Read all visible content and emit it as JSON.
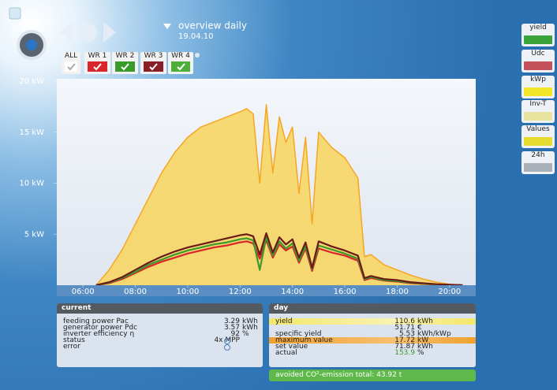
{
  "header": {
    "title": "overview daily",
    "date": "19.04.10"
  },
  "inverter_buttons": [
    "ALL",
    "WR 1",
    "WR 2",
    "WR 3",
    "WR 4"
  ],
  "side_buttons": [
    "yield",
    "Udc",
    "kWp",
    "Inv-T",
    "Values",
    "24h"
  ],
  "chart_data": {
    "type": "line",
    "x": [
      6.5,
      7,
      7.5,
      8,
      8.5,
      9,
      9.5,
      10,
      10.5,
      11,
      11.5,
      12,
      12.25,
      12.5,
      12.75,
      13,
      13.25,
      13.5,
      13.75,
      14,
      14.25,
      14.5,
      14.75,
      15,
      15.5,
      16,
      16.5,
      16.75,
      17,
      17.5,
      18,
      18.5,
      19,
      19.5,
      20,
      20.5
    ],
    "series": [
      {
        "color": "#f5a623",
        "fill": "#f7d664",
        "values": [
          0,
          1.5,
          3.5,
          6,
          8.5,
          11,
          13,
          14.5,
          15.5,
          16,
          16.5,
          17,
          17.3,
          16.8,
          10,
          17.7,
          11,
          16.5,
          14,
          15.5,
          9,
          14.5,
          6,
          15,
          13.5,
          12.5,
          10.5,
          2.8,
          3,
          2,
          1.5,
          1,
          0.6,
          0.3,
          0.1,
          0
        ]
      },
      {
        "color": "#d8262a",
        "values": [
          0,
          0.2,
          0.6,
          1.2,
          1.8,
          2.3,
          2.7,
          3.1,
          3.4,
          3.7,
          3.9,
          4.2,
          4.3,
          4.1,
          2.6,
          4.4,
          2.7,
          4,
          3.4,
          3.8,
          2.2,
          3.6,
          1.4,
          3.6,
          3.2,
          2.9,
          2.4,
          0.5,
          0.7,
          0.45,
          0.35,
          0.2,
          0.12,
          0.06,
          0.02,
          0
        ]
      },
      {
        "color": "#3a9a2a",
        "values": [
          0,
          0.25,
          0.7,
          1.3,
          2,
          2.5,
          3,
          3.4,
          3.7,
          4,
          4.2,
          4.5,
          4.6,
          4.4,
          1.5,
          4.7,
          2.9,
          4.3,
          3.6,
          4.1,
          2.4,
          3.8,
          1.6,
          3.9,
          3.5,
          3.1,
          2.6,
          0.6,
          0.8,
          0.5,
          0.4,
          0.25,
          0.15,
          0.08,
          0.03,
          0
        ]
      },
      {
        "color": "#6b1a1a",
        "values": [
          0,
          0.3,
          0.8,
          1.5,
          2.2,
          2.8,
          3.3,
          3.7,
          4,
          4.3,
          4.6,
          4.9,
          5,
          4.8,
          3,
          5.1,
          3.2,
          4.7,
          4,
          4.5,
          2.7,
          4.2,
          1.7,
          4.3,
          3.8,
          3.4,
          2.9,
          0.7,
          0.9,
          0.6,
          0.5,
          0.3,
          0.2,
          0.1,
          0.05,
          0
        ]
      }
    ],
    "xlim": [
      5,
      21
    ],
    "xticks": [
      {
        "value": 6,
        "label": "06:00"
      },
      {
        "value": 8,
        "label": "08:00"
      },
      {
        "value": 10,
        "label": "10:00"
      },
      {
        "value": 12,
        "label": "12:00"
      },
      {
        "value": 14,
        "label": "14:00"
      },
      {
        "value": 16,
        "label": "16:00"
      },
      {
        "value": 18,
        "label": "18:00"
      },
      {
        "value": 20,
        "label": "20:00"
      }
    ],
    "ylim": [
      0,
      20
    ],
    "yticks": [
      {
        "value": 5,
        "label": "5 kW"
      },
      {
        "value": 10,
        "label": "10 kW"
      },
      {
        "value": 15,
        "label": "15 kW"
      },
      {
        "value": 20,
        "label": "20 kW"
      }
    ],
    "grid": false
  },
  "current": {
    "title": "current",
    "rows": [
      {
        "label": "feeding power Pac",
        "value": "3.29",
        "unit": "kWh"
      },
      {
        "label": "generator power Pdc",
        "value": "3.57",
        "unit": "kWh"
      },
      {
        "label": "inverter efficiency η",
        "value": "92",
        "unit": "%"
      },
      {
        "label": "status",
        "value": "4x MPP"
      },
      {
        "label": "error"
      }
    ]
  },
  "day": {
    "title": "day",
    "rows": [
      {
        "label": "yield",
        "value": "110.6",
        "unit": "kWh"
      },
      {
        "value": "51.71",
        "unit": "€"
      },
      {
        "label": "specific yield",
        "value": "5.53",
        "unit": "kWh/kWp"
      },
      {
        "label": "maximum value",
        "value": "17.72",
        "unit": "kW"
      },
      {
        "label": "set value",
        "value": "71.87",
        "unit": "kWh"
      },
      {
        "label": "actual",
        "value": "153.9",
        "unit": "%"
      }
    ]
  },
  "co2": "avoided CO²-emission total: 43.92 t"
}
